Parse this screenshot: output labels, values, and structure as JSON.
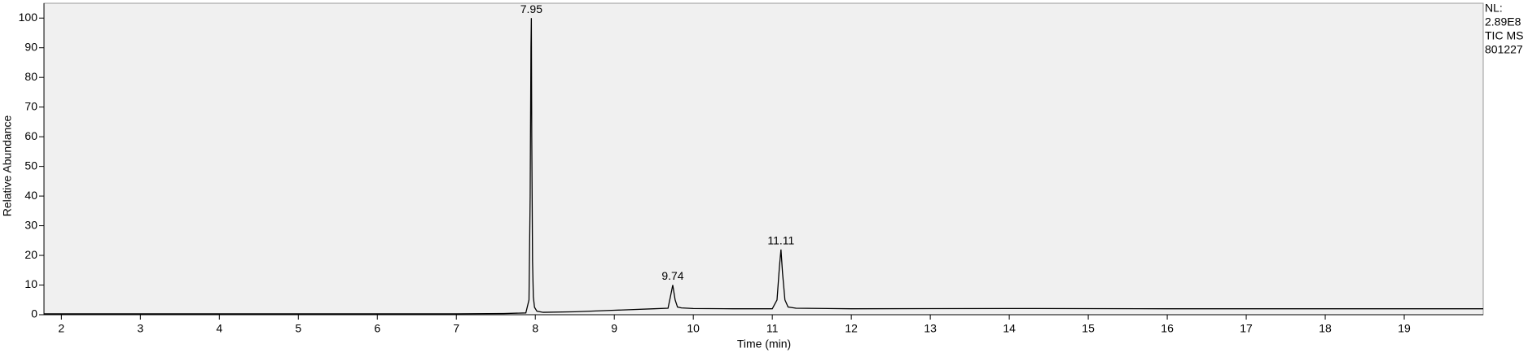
{
  "chart_data": {
    "type": "line",
    "xlabel": "Time (min)",
    "ylabel": "Relative Abundance",
    "xlim": [
      1.78,
      20.0
    ],
    "ylim": [
      0,
      105
    ],
    "xticks": [
      2,
      3,
      4,
      5,
      6,
      7,
      8,
      9,
      10,
      11,
      12,
      13,
      14,
      15,
      16,
      17,
      18,
      19
    ],
    "yticks": [
      0,
      10,
      20,
      30,
      40,
      50,
      60,
      70,
      80,
      90,
      100
    ],
    "x": [
      1.78,
      3.0,
      5.0,
      7.0,
      7.6,
      7.88,
      7.92,
      7.935,
      7.945,
      7.95,
      7.955,
      7.965,
      7.975,
      7.99,
      8.02,
      8.1,
      8.5,
      9.0,
      9.5,
      9.68,
      9.71,
      9.74,
      9.77,
      9.8,
      9.85,
      10.0,
      10.5,
      11.0,
      11.06,
      11.09,
      11.11,
      11.13,
      11.16,
      11.2,
      11.3,
      12.0,
      14.0,
      16.0,
      18.0,
      20.0
    ],
    "series": [
      {
        "name": "TIC MS",
        "color": "#000000",
        "values": [
          0.3,
          0.3,
          0.3,
          0.3,
          0.4,
          0.6,
          5,
          40,
          90,
          100,
          60,
          18,
          6,
          2.5,
          1.2,
          0.8,
          1.0,
          1.5,
          2.0,
          2.2,
          6,
          10,
          5,
          2.6,
          2.3,
          2.1,
          2.0,
          2.0,
          5,
          16,
          22,
          14,
          5,
          2.6,
          2.2,
          2.0,
          2.1,
          2.0,
          2.0,
          2.0
        ]
      }
    ],
    "peaks": [
      {
        "label": "7.95",
        "x": 7.95,
        "y": 100
      },
      {
        "label": "9.74",
        "x": 9.74,
        "y": 10
      },
      {
        "label": "11.11",
        "x": 11.11,
        "y": 22
      }
    ],
    "info": [
      "NL:",
      "2.89E8",
      "TIC  MS",
      "801227"
    ],
    "background": "#f0f0f0"
  }
}
